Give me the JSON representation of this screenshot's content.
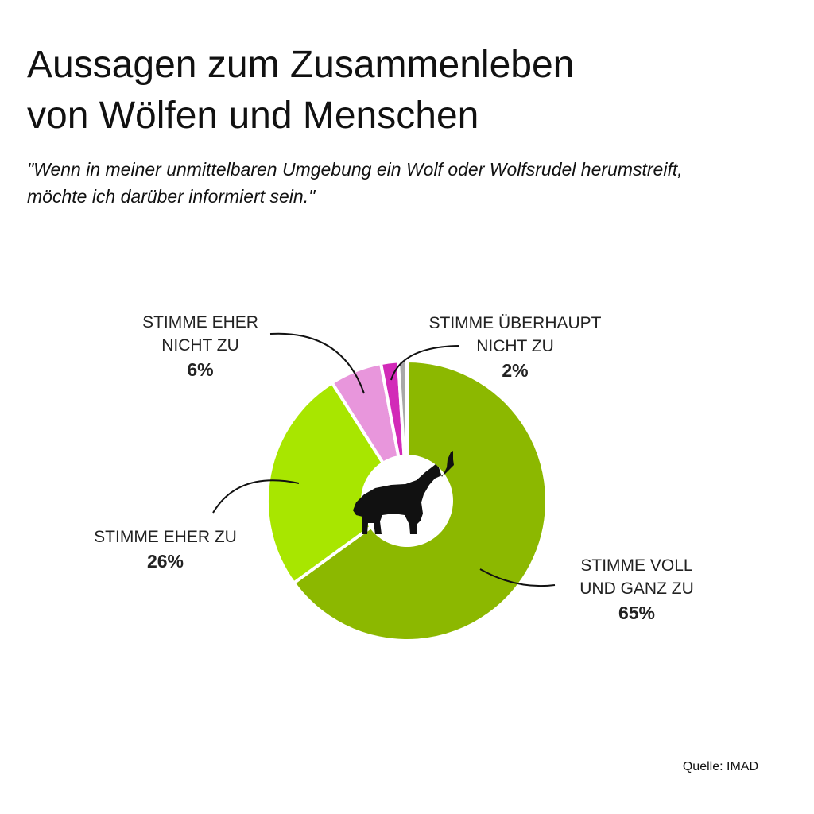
{
  "title_lines": [
    "Aussagen zum Zusammenleben",
    "von Wölfen und Menschen"
  ],
  "subtitle_lines": [
    "\"Wenn in meiner unmittelbaren Umgebung ein Wolf oder Wolfsrudel herumstreift,",
    "möchte ich darüber informiert sein.\""
  ],
  "source": "Quelle: IMAD",
  "center_icon": "wolf-howling-icon",
  "chart_data": {
    "type": "pie",
    "donut": true,
    "slices": [
      {
        "label_lines": [
          "STIMME VOLL",
          "UND GANZ ZU"
        ],
        "value_label": "65%",
        "value": 65,
        "color": "#8cb800"
      },
      {
        "label_lines": [
          "STIMME EHER ZU"
        ],
        "value_label": "26%",
        "value": 26,
        "color": "#a8e600"
      },
      {
        "label_lines": [
          "STIMME EHER",
          "NICHT ZU"
        ],
        "value_label": "6%",
        "value": 6,
        "color": "#e896dc"
      },
      {
        "label_lines": [
          "STIMME ÜBERHAUPT",
          "NICHT ZU"
        ],
        "value_label": "2%",
        "value": 2,
        "color": "#d22ab8"
      },
      {
        "label_lines": [],
        "value_label": "",
        "value": 1,
        "color": "#a8a8a8"
      }
    ]
  }
}
